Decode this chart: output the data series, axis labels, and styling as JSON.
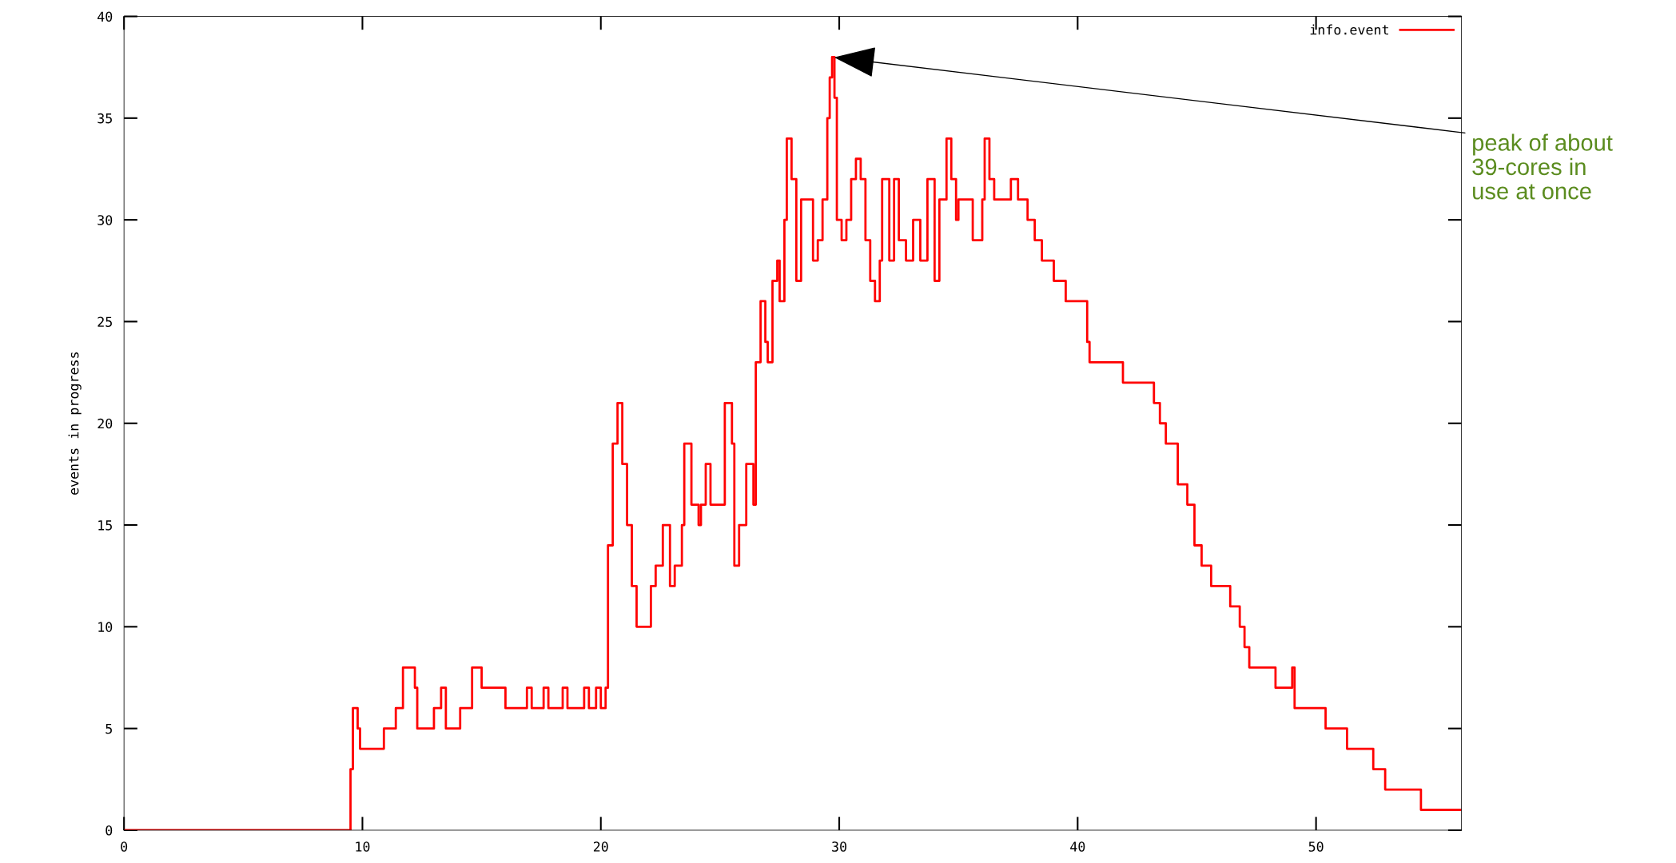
{
  "chart_data": {
    "type": "step",
    "ylabel": "events in progress",
    "xlim": [
      0,
      56.1
    ],
    "ylim": [
      0,
      40
    ],
    "xticks": [
      0,
      10,
      20,
      30,
      40,
      50
    ],
    "yticks": [
      0,
      5,
      10,
      15,
      20,
      25,
      30,
      35,
      40
    ],
    "grid": false,
    "legend": "top right",
    "marker": "none",
    "line_style": "solid",
    "annotations": [
      {
        "text": "peak of about\n39-cores in\nuse at once",
        "x": 29.7,
        "y": 38
      }
    ],
    "series": [
      {
        "name": "info.event",
        "color": "#ff0000",
        "x": [
          0,
          9.5,
          9.6,
          9.8,
          9.9,
          10.9,
          11.4,
          11.7,
          12.2,
          12.3,
          13.0,
          13.3,
          13.5,
          14.1,
          14.6,
          15.0,
          16.0,
          16.9,
          17.1,
          17.6,
          17.8,
          18.4,
          18.6,
          19.3,
          19.5,
          19.8,
          20.0,
          20.2,
          20.3,
          20.5,
          20.7,
          20.9,
          21.1,
          21.3,
          21.5,
          22.1,
          22.3,
          22.6,
          22.9,
          23.1,
          23.4,
          23.5,
          23.8,
          24.1,
          24.2,
          24.4,
          24.6,
          25.0,
          25.2,
          25.5,
          25.6,
          25.8,
          26.1,
          26.4,
          26.5,
          26.7,
          26.9,
          27.0,
          27.2,
          27.4,
          27.5,
          27.7,
          27.8,
          28.0,
          28.2,
          28.4,
          28.9,
          29.1,
          29.3,
          29.5,
          29.6,
          29.7,
          29.8,
          29.9,
          30.1,
          30.3,
          30.5,
          30.7,
          30.9,
          31.1,
          31.3,
          31.5,
          31.7,
          31.8,
          32.1,
          32.3,
          32.5,
          32.8,
          33.1,
          33.4,
          33.7,
          34.0,
          34.2,
          34.5,
          34.7,
          34.9,
          35.0,
          35.6,
          36.0,
          36.1,
          36.3,
          36.5,
          37.2,
          37.5,
          37.9,
          38.2,
          38.5,
          39.0,
          39.5,
          40.4,
          40.5,
          41.9,
          43.2,
          43.45,
          43.7,
          44.2,
          44.6,
          44.9,
          45.2,
          45.6,
          46.4,
          46.8,
          47.0,
          47.2,
          48.3,
          49.0,
          49.1,
          50.4,
          51.3,
          52.4,
          52.9,
          54.4,
          56.1
        ],
        "values": [
          0,
          3,
          6,
          5,
          4,
          5,
          6,
          8,
          7,
          5,
          6,
          7,
          5,
          6,
          8,
          7,
          6,
          7,
          6,
          7,
          6,
          7,
          6,
          7,
          6,
          7,
          6,
          7,
          14,
          19,
          21,
          18,
          15,
          12,
          10,
          12,
          13,
          15,
          12,
          13,
          15,
          19,
          16,
          15,
          16,
          18,
          16,
          16,
          21,
          19,
          13,
          15,
          18,
          16,
          23,
          26,
          24,
          23,
          27,
          28,
          26,
          30,
          34,
          32,
          27,
          31,
          28,
          29,
          31,
          35,
          37,
          38,
          36,
          30,
          29,
          30,
          32,
          33,
          32,
          29,
          27,
          26,
          28,
          32,
          28,
          32,
          29,
          28,
          30,
          28,
          32,
          27,
          31,
          34,
          32,
          30,
          31,
          29,
          31,
          34,
          32,
          31,
          32,
          31,
          30,
          29,
          28,
          27,
          26,
          24,
          23,
          22,
          21,
          20,
          19,
          17,
          16,
          14,
          13,
          12,
          11,
          10,
          9,
          8,
          7,
          8,
          6,
          5,
          4,
          3,
          2,
          1,
          1
        ]
      }
    ]
  }
}
